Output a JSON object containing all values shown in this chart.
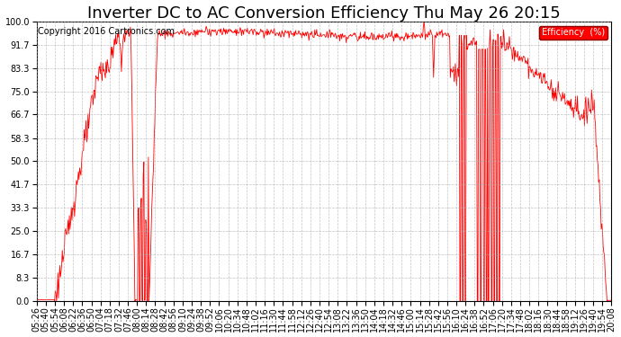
{
  "title": "Inverter DC to AC Conversion Efficiency Thu May 26 20:15",
  "copyright": "Copyright 2016 Cartronics.com",
  "legend_label": "Efficiency  (%)",
  "line_color": "#ff0000",
  "background_color": "#ffffff",
  "grid_color": "#aaaaaa",
  "ylim": [
    0,
    100
  ],
  "yticks": [
    0.0,
    8.3,
    16.7,
    25.0,
    33.3,
    41.7,
    50.0,
    58.3,
    66.7,
    75.0,
    83.3,
    91.7,
    100.0
  ],
  "xtick_labels": [
    "05:26",
    "05:40",
    "05:54",
    "06:08",
    "06:22",
    "06:36",
    "06:50",
    "07:04",
    "07:18",
    "07:32",
    "07:46",
    "08:00",
    "08:14",
    "08:28",
    "08:42",
    "08:56",
    "09:10",
    "09:24",
    "09:38",
    "09:52",
    "10:06",
    "10:20",
    "10:34",
    "10:48",
    "11:02",
    "11:16",
    "11:30",
    "11:44",
    "11:58",
    "12:12",
    "12:26",
    "12:40",
    "12:54",
    "13:08",
    "13:22",
    "13:36",
    "13:50",
    "14:04",
    "14:18",
    "14:32",
    "14:46",
    "15:00",
    "15:14",
    "15:28",
    "15:42",
    "15:56",
    "16:10",
    "16:24",
    "16:38",
    "16:52",
    "17:06",
    "17:20",
    "17:34",
    "17:48",
    "18:02",
    "18:16",
    "18:30",
    "18:44",
    "18:58",
    "19:12",
    "19:26",
    "19:40",
    "19:54",
    "20:08"
  ],
  "title_fontsize": 13,
  "axis_fontsize": 7,
  "copyright_fontsize": 7
}
